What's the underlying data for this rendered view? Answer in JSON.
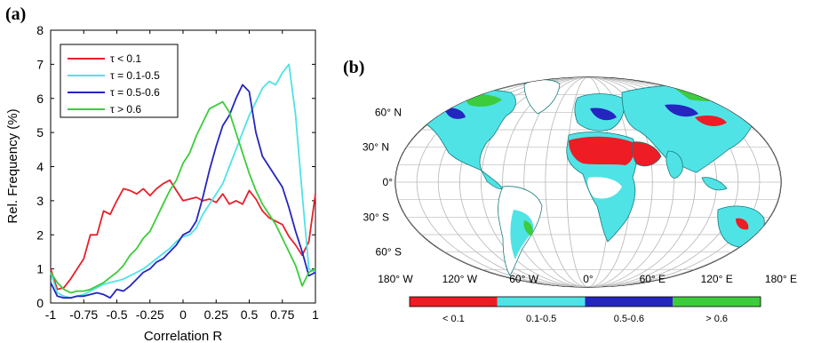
{
  "panel_a": {
    "label": "(a)",
    "colors": {
      "red": "#e8202a",
      "cyan": "#4fe3e6",
      "blue": "#2525c0",
      "green": "#3ccc3c"
    }
  },
  "panel_b": {
    "label": "(b)",
    "lat_labels": [
      "60° N",
      "30° N",
      "0°",
      "30° S",
      "60° S"
    ],
    "lon_labels": [
      "180° W",
      "120° W",
      "60° W",
      "0°",
      "60° E",
      "120° E",
      "180° E"
    ],
    "colorbar": [
      {
        "label": "< 0.1",
        "color": "#ee1c24"
      },
      {
        "label": "0.1-0.5",
        "color": "#4fe3e6"
      },
      {
        "label": "0.5-0.6",
        "color": "#2525c0"
      },
      {
        "label": "> 0.6",
        "color": "#3ccc3c"
      }
    ],
    "colors": {
      "land_shadow": "#1a7a7a",
      "desert": "#ee1c24",
      "graticule": "#bbbbbb"
    }
  },
  "chart_data": [
    {
      "type": "line",
      "xlabel": "Correlation R",
      "ylabel": "Rel. Frequency (%)",
      "xlim": [
        -1,
        1
      ],
      "ylim": [
        0,
        8
      ],
      "xticks": [
        -1,
        -0.75,
        -0.5,
        -0.25,
        0,
        0.25,
        0.5,
        0.75,
        1
      ],
      "xtick_labels": [
        "-1",
        "-0.75",
        "-0.5",
        "-0.25",
        "0",
        "0.25",
        "0.5",
        "0.75",
        "1"
      ],
      "yticks": [
        0,
        1,
        2,
        3,
        4,
        5,
        6,
        7,
        8
      ],
      "ytick_labels": [
        "0",
        "1",
        "2",
        "3",
        "4",
        "5",
        "6",
        "7",
        "8"
      ],
      "grid": false,
      "legend_position": "top-left",
      "series": [
        {
          "name": "τ < 0.1",
          "color": "#e8202a",
          "x": [
            -1,
            -0.95,
            -0.9,
            -0.85,
            -0.8,
            -0.75,
            -0.7,
            -0.65,
            -0.6,
            -0.55,
            -0.5,
            -0.45,
            -0.4,
            -0.35,
            -0.3,
            -0.25,
            -0.2,
            -0.15,
            -0.1,
            -0.05,
            0,
            0.05,
            0.1,
            0.15,
            0.2,
            0.25,
            0.3,
            0.35,
            0.4,
            0.45,
            0.5,
            0.55,
            0.6,
            0.65,
            0.7,
            0.75,
            0.8,
            0.85,
            0.9,
            0.95,
            1
          ],
          "y": [
            1.0,
            0.4,
            0.45,
            0.7,
            1.0,
            1.3,
            2.0,
            2.0,
            2.7,
            2.6,
            3.0,
            3.35,
            3.3,
            3.2,
            3.35,
            3.15,
            3.35,
            3.5,
            3.6,
            3.3,
            3.0,
            3.05,
            3.1,
            3.0,
            3.05,
            2.95,
            3.2,
            2.9,
            3.0,
            2.9,
            3.3,
            3.05,
            2.7,
            2.5,
            2.4,
            2.3,
            1.95,
            1.7,
            1.4,
            1.8,
            3.2
          ]
        },
        {
          "name": "τ = 0.1-0.5",
          "color": "#4fe3e6",
          "x": [
            -1,
            -0.95,
            -0.9,
            -0.85,
            -0.8,
            -0.75,
            -0.7,
            -0.65,
            -0.6,
            -0.55,
            -0.5,
            -0.45,
            -0.4,
            -0.35,
            -0.3,
            -0.25,
            -0.2,
            -0.15,
            -0.1,
            -0.05,
            0,
            0.05,
            0.1,
            0.15,
            0.2,
            0.25,
            0.3,
            0.35,
            0.4,
            0.45,
            0.5,
            0.55,
            0.6,
            0.65,
            0.7,
            0.75,
            0.8,
            0.85,
            0.9,
            0.95,
            1
          ],
          "y": [
            0.9,
            0.3,
            0.2,
            0.15,
            0.2,
            0.25,
            0.35,
            0.45,
            0.55,
            0.6,
            0.65,
            0.7,
            0.8,
            0.9,
            1.0,
            1.15,
            1.3,
            1.45,
            1.6,
            1.8,
            1.95,
            2.0,
            2.2,
            2.6,
            2.9,
            3.2,
            3.5,
            4.0,
            4.5,
            5.0,
            5.5,
            5.9,
            6.3,
            6.5,
            6.4,
            6.75,
            7.0,
            5.5,
            3.2,
            1.0,
            0.9
          ]
        },
        {
          "name": "τ = 0.5-0.6",
          "color": "#2525c0",
          "x": [
            -1,
            -0.95,
            -0.9,
            -0.85,
            -0.8,
            -0.75,
            -0.7,
            -0.65,
            -0.6,
            -0.55,
            -0.5,
            -0.45,
            -0.4,
            -0.35,
            -0.3,
            -0.25,
            -0.2,
            -0.15,
            -0.1,
            -0.05,
            0,
            0.05,
            0.1,
            0.15,
            0.2,
            0.25,
            0.3,
            0.35,
            0.4,
            0.45,
            0.5,
            0.55,
            0.6,
            0.65,
            0.7,
            0.75,
            0.8,
            0.85,
            0.9,
            0.95,
            1
          ],
          "y": [
            0.6,
            0.2,
            0.15,
            0.15,
            0.2,
            0.2,
            0.25,
            0.3,
            0.25,
            0.15,
            0.4,
            0.35,
            0.5,
            0.7,
            0.9,
            1.0,
            1.2,
            1.3,
            1.5,
            1.7,
            2.0,
            2.1,
            2.4,
            3.1,
            3.9,
            4.6,
            5.2,
            5.5,
            6.0,
            6.4,
            6.2,
            5.0,
            4.3,
            4.0,
            3.7,
            3.4,
            2.8,
            2.1,
            1.5,
            0.8,
            0.9
          ]
        },
        {
          "name": "τ > 0.6",
          "color": "#3ccc3c",
          "x": [
            -1,
            -0.95,
            -0.9,
            -0.85,
            -0.8,
            -0.75,
            -0.7,
            -0.65,
            -0.6,
            -0.55,
            -0.5,
            -0.45,
            -0.4,
            -0.35,
            -0.3,
            -0.25,
            -0.2,
            -0.15,
            -0.1,
            -0.05,
            0,
            0.05,
            0.1,
            0.15,
            0.2,
            0.25,
            0.3,
            0.35,
            0.4,
            0.45,
            0.5,
            0.55,
            0.6,
            0.65,
            0.7,
            0.75,
            0.8,
            0.85,
            0.9,
            0.95,
            1
          ],
          "y": [
            0.9,
            0.6,
            0.4,
            0.3,
            0.35,
            0.35,
            0.4,
            0.5,
            0.6,
            0.75,
            0.9,
            1.1,
            1.4,
            1.6,
            1.9,
            2.1,
            2.5,
            2.9,
            3.3,
            3.6,
            4.1,
            4.4,
            4.9,
            5.3,
            5.7,
            5.8,
            5.9,
            5.6,
            5.0,
            4.4,
            3.8,
            3.3,
            2.9,
            2.6,
            2.3,
            1.9,
            1.5,
            1.1,
            0.5,
            0.9,
            1.0
          ]
        }
      ]
    }
  ]
}
